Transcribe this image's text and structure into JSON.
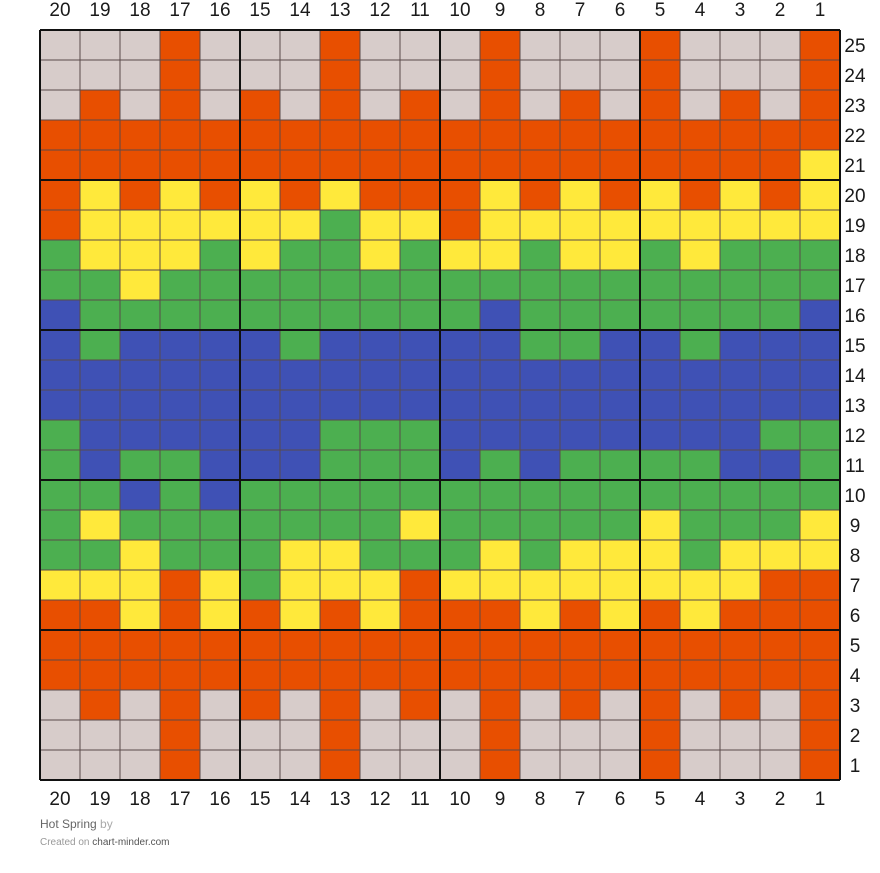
{
  "chart": {
    "columns": 20,
    "rows": 25,
    "column_labels": [
      "20",
      "19",
      "18",
      "17",
      "16",
      "15",
      "14",
      "13",
      "12",
      "11",
      "10",
      "9",
      "8",
      "7",
      "6",
      "5",
      "4",
      "3",
      "2",
      "1"
    ],
    "row_labels": [
      "25",
      "24",
      "23",
      "22",
      "21",
      "20",
      "19",
      "18",
      "17",
      "16",
      "15",
      "14",
      "13",
      "12",
      "11",
      "10",
      "9",
      "8",
      "7",
      "6",
      "5",
      "4",
      "3",
      "2",
      "1"
    ],
    "palette": {
      "W": "#d7ccca",
      "O": "#e84f00",
      "Y": "#ffe93b",
      "G": "#4caf50",
      "B": "#3f51b5"
    },
    "grid": [
      "WWWOWWWOWWWOWWWOWWWO",
      "WWWOWWWOWWWOWWWOWWWO",
      "WOWOWOWOWOWOWOWOWOWO",
      "OOOOOOOOOOOOOOOOOOOO",
      "OOOOOOOOOOOOOOOOOOOY",
      "OYOYOYOYOOOYOYOYOYOY",
      "OYYYYYYGYYOYYYYYYYYY",
      "GYYYGYGGYGYYGYYGYGGG",
      "GGYGGGGGGGGGGGGGGGGG",
      "BGGGGGGGGGGBGGGGGGGB",
      "BGBBBBGBBBBBGGBBGBBB",
      "BBBBBBBBBBBBBBBBBBBB",
      "BBBBBBBBBBBBBBBBBBBB",
      "GBBBBBBGGGBBBBBBBBGG",
      "GBGGBBBGGGBGBGGGGBBG",
      "GGBGBGGGGGGGGGGGGGGG",
      "GYGGGGGGGYGGGGGYGGGY",
      "GGYGGGYYGGGYGYYYGYYY",
      "YYYOYGYYYOYYYYYYYYOO",
      "OOYOYOYOYOOOYOYOYOOO",
      "OOOOOOOOOOOOOOOOOOOO",
      "OOOOOOOOOOOOOOOOOOOO",
      "WOWOWOWOWOWOWOWOWOWO",
      "WWWOWWWOWWWOWWWOWWWO",
      "WWWOWWWOWWWOWWWOWWWO"
    ]
  },
  "footer": {
    "title": "Hot Spring",
    "by": "by",
    "created_on": "Created on",
    "site": "chart-minder.com"
  }
}
